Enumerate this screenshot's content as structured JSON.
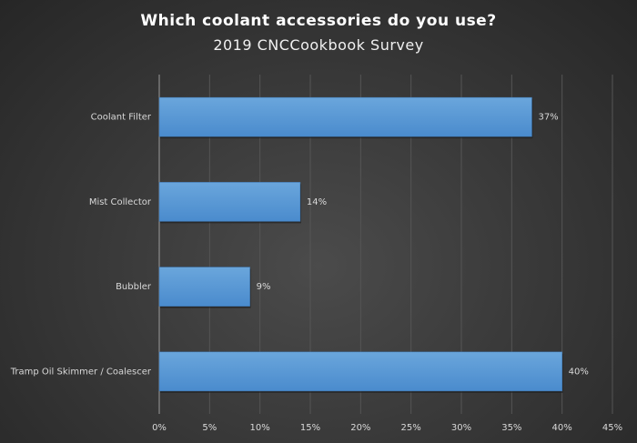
{
  "chart_data": {
    "type": "bar",
    "orientation": "horizontal",
    "title": "Which coolant accessories do you use?",
    "subtitle": "2019 CNCCookbook Survey",
    "categories": [
      "Coolant Filter",
      "Mist Collector",
      "Bubbler",
      "Tramp Oil Skimmer / Coalescer"
    ],
    "values": [
      37,
      14,
      9,
      40
    ],
    "data_labels": [
      "37%",
      "14%",
      "9%",
      "40%"
    ],
    "xlim": [
      0,
      45
    ],
    "x_ticks": [
      "0%",
      "5%",
      "10%",
      "15%",
      "20%",
      "25%",
      "30%",
      "35%",
      "40%",
      "45%"
    ],
    "grid": true,
    "bar_color": "#5b9bd5",
    "background_color": "#3a3a3a"
  }
}
